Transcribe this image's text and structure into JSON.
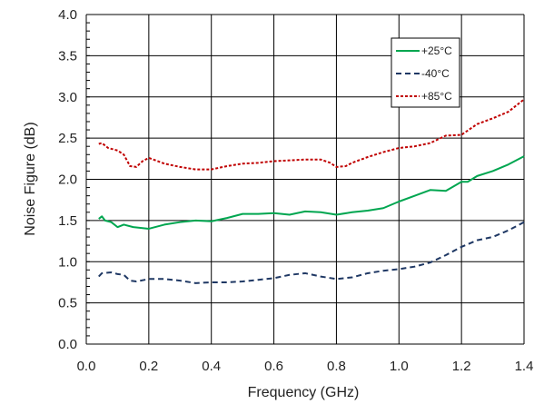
{
  "chart_data": {
    "type": "line",
    "title": "",
    "xlabel": "Frequency (GHz)",
    "ylabel": "Noise Figure (dB)",
    "xlim": [
      0.0,
      1.4
    ],
    "ylim": [
      0.0,
      4.0
    ],
    "x_ticks": [
      "0.0",
      "0.2",
      "0.4",
      "0.6",
      "0.8",
      "1.0",
      "1.2",
      "1.4"
    ],
    "y_ticks": [
      "0.0",
      "0.5",
      "1.0",
      "1.5",
      "2.0",
      "2.5",
      "3.0",
      "3.5",
      "4.0"
    ],
    "grid": true,
    "legend_position": "top-right",
    "series": [
      {
        "name": "+25°C",
        "color": "#00a650",
        "dash": "solid",
        "points": [
          [
            0.04,
            1.52
          ],
          [
            0.05,
            1.55
          ],
          [
            0.06,
            1.5
          ],
          [
            0.08,
            1.48
          ],
          [
            0.1,
            1.42
          ],
          [
            0.12,
            1.45
          ],
          [
            0.15,
            1.42
          ],
          [
            0.2,
            1.4
          ],
          [
            0.25,
            1.45
          ],
          [
            0.3,
            1.48
          ],
          [
            0.35,
            1.5
          ],
          [
            0.4,
            1.49
          ],
          [
            0.45,
            1.53
          ],
          [
            0.5,
            1.58
          ],
          [
            0.55,
            1.58
          ],
          [
            0.6,
            1.59
          ],
          [
            0.65,
            1.57
          ],
          [
            0.7,
            1.61
          ],
          [
            0.75,
            1.6
          ],
          [
            0.8,
            1.57
          ],
          [
            0.85,
            1.6
          ],
          [
            0.9,
            1.62
          ],
          [
            0.95,
            1.65
          ],
          [
            1.0,
            1.73
          ],
          [
            1.05,
            1.8
          ],
          [
            1.1,
            1.87
          ],
          [
            1.15,
            1.86
          ],
          [
            1.2,
            1.97
          ],
          [
            1.22,
            1.97
          ],
          [
            1.25,
            2.04
          ],
          [
            1.3,
            2.1
          ],
          [
            1.35,
            2.18
          ],
          [
            1.4,
            2.28
          ]
        ]
      },
      {
        "name": "-40°C",
        "color": "#1f3864",
        "dash": "dash",
        "points": [
          [
            0.04,
            0.82
          ],
          [
            0.05,
            0.86
          ],
          [
            0.08,
            0.87
          ],
          [
            0.1,
            0.85
          ],
          [
            0.12,
            0.84
          ],
          [
            0.14,
            0.77
          ],
          [
            0.16,
            0.76
          ],
          [
            0.2,
            0.79
          ],
          [
            0.25,
            0.79
          ],
          [
            0.3,
            0.77
          ],
          [
            0.35,
            0.74
          ],
          [
            0.4,
            0.75
          ],
          [
            0.45,
            0.75
          ],
          [
            0.5,
            0.76
          ],
          [
            0.55,
            0.78
          ],
          [
            0.6,
            0.8
          ],
          [
            0.65,
            0.84
          ],
          [
            0.7,
            0.86
          ],
          [
            0.75,
            0.82
          ],
          [
            0.8,
            0.79
          ],
          [
            0.85,
            0.81
          ],
          [
            0.9,
            0.86
          ],
          [
            0.95,
            0.89
          ],
          [
            1.0,
            0.91
          ],
          [
            1.05,
            0.94
          ],
          [
            1.1,
            0.99
          ],
          [
            1.15,
            1.08
          ],
          [
            1.2,
            1.18
          ],
          [
            1.25,
            1.26
          ],
          [
            1.3,
            1.3
          ],
          [
            1.35,
            1.38
          ],
          [
            1.4,
            1.48
          ]
        ]
      },
      {
        "name": "+85°C",
        "color": "#c00000",
        "dash": "dot",
        "points": [
          [
            0.04,
            2.43
          ],
          [
            0.05,
            2.44
          ],
          [
            0.07,
            2.38
          ],
          [
            0.1,
            2.35
          ],
          [
            0.12,
            2.3
          ],
          [
            0.14,
            2.16
          ],
          [
            0.16,
            2.15
          ],
          [
            0.18,
            2.22
          ],
          [
            0.2,
            2.26
          ],
          [
            0.25,
            2.19
          ],
          [
            0.3,
            2.15
          ],
          [
            0.35,
            2.12
          ],
          [
            0.4,
            2.12
          ],
          [
            0.45,
            2.16
          ],
          [
            0.5,
            2.19
          ],
          [
            0.55,
            2.2
          ],
          [
            0.6,
            2.22
          ],
          [
            0.65,
            2.23
          ],
          [
            0.7,
            2.24
          ],
          [
            0.75,
            2.24
          ],
          [
            0.78,
            2.2
          ],
          [
            0.8,
            2.15
          ],
          [
            0.83,
            2.16
          ],
          [
            0.85,
            2.2
          ],
          [
            0.9,
            2.27
          ],
          [
            0.95,
            2.33
          ],
          [
            1.0,
            2.38
          ],
          [
            1.05,
            2.4
          ],
          [
            1.1,
            2.44
          ],
          [
            1.15,
            2.53
          ],
          [
            1.2,
            2.54
          ],
          [
            1.25,
            2.67
          ],
          [
            1.3,
            2.74
          ],
          [
            1.35,
            2.82
          ],
          [
            1.4,
            2.97
          ]
        ]
      }
    ]
  }
}
